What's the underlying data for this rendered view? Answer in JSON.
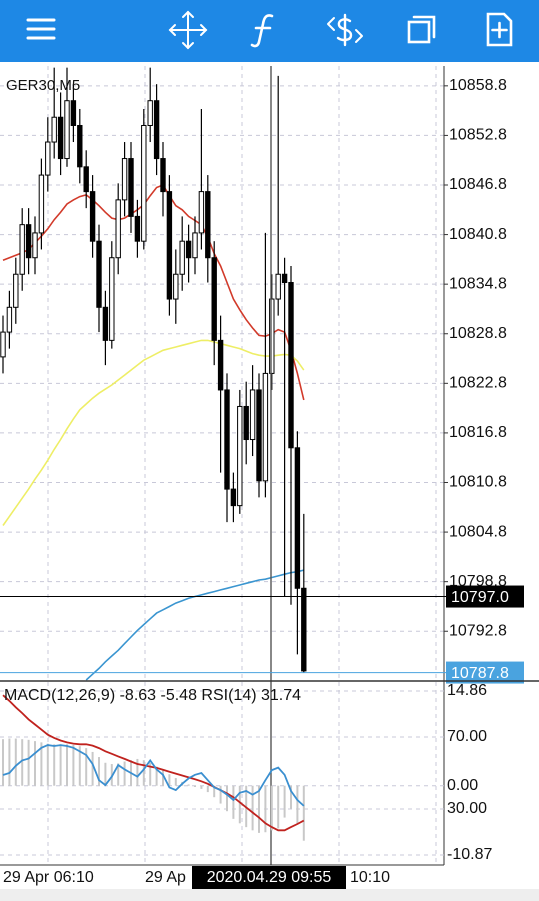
{
  "chart_data": [
    {
      "type": "candlestick",
      "title": "GER30,M5",
      "open": [
        10826,
        10829,
        10832,
        10836,
        10842,
        10838,
        10841,
        10848,
        10852,
        10855,
        10850,
        10857,
        10854,
        10849,
        10846,
        10840,
        10832,
        10828,
        10838,
        10845,
        10850,
        10843,
        10840,
        10854,
        10857,
        10850,
        10846,
        10833,
        10836,
        10840,
        10838,
        10841,
        10846,
        10838,
        10828,
        10822,
        10810,
        10808,
        10820,
        10816,
        10822,
        10811,
        10824,
        10833,
        10836,
        10835,
        10815,
        10798
      ],
      "high": [
        10831,
        10834,
        10838,
        10844,
        10844,
        10843,
        10850,
        10855,
        10861,
        10858,
        10861,
        10859,
        10856,
        10851,
        10848,
        10842,
        10834,
        10840,
        10847,
        10852,
        10852,
        10845,
        10856,
        10861,
        10859,
        10852,
        10848,
        10839,
        10843,
        10842,
        10843,
        10856,
        10848,
        10840,
        10831,
        10824,
        10812,
        10822,
        10823,
        10825,
        10824,
        10841,
        10836,
        10860,
        10838,
        10837,
        10817,
        10807
      ],
      "low": [
        10824,
        10827,
        10830,
        10834,
        10836,
        10836,
        10839,
        10846,
        10850,
        10848,
        10849,
        10852,
        10847,
        10844,
        10838,
        10829,
        10825,
        10827,
        10836,
        10843,
        10841,
        10838,
        10839,
        10852,
        10848,
        10843,
        10831,
        10830,
        10834,
        10835,
        10836,
        10839,
        10835,
        10825,
        10812,
        10806,
        10806,
        10807,
        10813,
        10814,
        10809,
        10809,
        10822,
        10831,
        10797,
        10796,
        10790,
        10787.8
      ],
      "close": [
        10829,
        10832,
        10836,
        10842,
        10838,
        10841,
        10848,
        10852,
        10855,
        10850,
        10857,
        10854,
        10849,
        10846,
        10840,
        10832,
        10828,
        10838,
        10845,
        10850,
        10843,
        10840,
        10854,
        10857,
        10850,
        10846,
        10833,
        10836,
        10840,
        10838,
        10841,
        10846,
        10838,
        10828,
        10822,
        10810,
        10808,
        10820,
        10816,
        10822,
        10811,
        10824,
        10833,
        10836,
        10835,
        10815,
        10798,
        10788
      ],
      "lines": [
        {
          "color": "#d23a2a",
          "values": [
            10837.7,
            10838,
            10838.3,
            10838.6,
            10839,
            10839.8,
            10840.6,
            10841.5,
            10842.6,
            10843.5,
            10844.5,
            10845,
            10845.4,
            10845.6,
            10845,
            10844.3,
            10843.5,
            10842.8,
            10842.6,
            10842.8,
            10843.3,
            10843.8,
            10844.4,
            10845.5,
            10846.5,
            10846.8,
            10845.5,
            10844.3,
            10843.8,
            10843,
            10842.5,
            10842,
            10840.5,
            10838.5,
            10837,
            10835,
            10833,
            10831.7,
            10830.5,
            10829.5,
            10828.6,
            10828.5,
            10828.8,
            10829.3,
            10829,
            10826.8,
            10824,
            10820.8
          ]
        },
        {
          "color": "#eeee66",
          "values": [
            10805.6,
            10806.7,
            10807.8,
            10808.9,
            10810,
            10811.2,
            10812.3,
            10813.5,
            10814.8,
            10816,
            10817.3,
            10818.5,
            10819.6,
            10820.3,
            10821,
            10821.6,
            10822.1,
            10822.6,
            10823.2,
            10823.8,
            10824.4,
            10825,
            10825.6,
            10826,
            10826.4,
            10826.8,
            10827,
            10827.2,
            10827.4,
            10827.6,
            10827.8,
            10828,
            10828,
            10827.8,
            10827.6,
            10827.4,
            10827.2,
            10827,
            10826.7,
            10826.4,
            10826.2,
            10826.1,
            10826.1,
            10826.2,
            10826.3,
            10826.2,
            10825.5,
            10824.4
          ]
        },
        {
          "color": "#3a95d0",
          "values": [
            null,
            null,
            null,
            null,
            null,
            null,
            null,
            null,
            null,
            null,
            null,
            null,
            null,
            10786.9,
            10787.6,
            10788.3,
            10789.1,
            10789.8,
            10790.5,
            10791.3,
            10792.1,
            10792.9,
            10793.6,
            10794.3,
            10795,
            10795.4,
            10795.8,
            10796.2,
            10796.5,
            10796.8,
            10797,
            10797.2,
            10797.4,
            10797.6,
            10797.8,
            10798,
            10798.2,
            10798.4,
            10798.6,
            10798.8,
            10799,
            10799.1,
            10799.3,
            10799.5,
            10799.7,
            10799.9,
            10800,
            10800.2
          ]
        }
      ],
      "price_lines": [
        {
          "value": 10797.0,
          "label": "10797.0",
          "color": "#000000"
        },
        {
          "value": 10787.8,
          "label": "10787.8",
          "color": "#4aa3df"
        }
      ],
      "ylim": [
        10786.9,
        10861.2
      ],
      "yticks": [
        10858.8,
        10852.8,
        10846.8,
        10840.8,
        10834.8,
        10828.8,
        10822.8,
        10816.8,
        10810.8,
        10804.8,
        10798.8,
        10792.8
      ],
      "grid": true,
      "x_labels": [
        "29 Apr 06:10",
        "29 Ap",
        "10:10"
      ],
      "crosshair_label": "2020.04.29 09:55"
    },
    {
      "type": "macd",
      "title": "MACD(12,26,9) -8.63 -5.48 RSI(14) 31.74",
      "histogram": {
        "color": "#c8c8c8",
        "values": [
          7.3,
          7.4,
          7.4,
          7.3,
          7.2,
          7,
          6.8,
          6.6,
          6.5,
          6.5,
          6.5,
          6.4,
          6.2,
          5.9,
          5.3,
          4.5,
          3.6,
          3.4,
          3.5,
          3.8,
          4,
          4.2,
          4,
          3.6,
          3,
          2.4,
          1.8,
          1.2,
          0.6,
          0.2,
          -0.2,
          -0.5,
          -1,
          -1.8,
          -2.8,
          -4,
          -5.2,
          -5.9,
          -6.5,
          -7,
          -7.4,
          -7.3,
          -7,
          -6.7,
          -5,
          -3.6,
          -6,
          -8.63
        ]
      },
      "signal": {
        "color": "#c0221e",
        "values": [
          14.2,
          13.3,
          12.3,
          11.4,
          10.4,
          9.6,
          8.8,
          8,
          7.5,
          7.1,
          6.8,
          6.6,
          6.5,
          6.5,
          6.3,
          5.9,
          5.4,
          5,
          4.6,
          4.2,
          3.8,
          3.4,
          3.2,
          3,
          2.8,
          2.5,
          2.2,
          1.9,
          1.6,
          1.3,
          1,
          0.7,
          0.3,
          -0.2,
          -0.7,
          -1.2,
          -1.8,
          -2.6,
          -3.4,
          -4.2,
          -5,
          -5.9,
          -6.5,
          -7,
          -7,
          -6.5,
          -6,
          -5.48
        ]
      },
      "rsi": {
        "color": "#3a8fd0",
        "axis": "y2",
        "values": [
          48.9,
          50,
          54,
          57,
          58,
          61,
          64,
          65.5,
          65,
          65.5,
          65,
          64,
          62,
          60,
          55,
          46,
          43.3,
          48,
          54.4,
          52,
          50,
          48,
          52,
          57,
          52,
          49,
          42,
          40.5,
          44,
          47,
          49,
          50,
          46,
          42,
          40.5,
          38,
          35,
          39,
          40,
          38,
          40,
          46,
          51.6,
          53,
          49,
          40,
          35,
          31.74
        ]
      },
      "ylim": [
        -10.87,
        14.86
      ],
      "yticks": [
        14.86,
        {
          "value": 0,
          "label": "0.00"
        },
        -10.87
      ],
      "y2lim": [
        4.44,
        95.56
      ],
      "y2ticks": [
        {
          "value": 70,
          "label": "70.00"
        },
        {
          "value": 30,
          "label": "30.00"
        }
      ],
      "grid": true
    }
  ]
}
